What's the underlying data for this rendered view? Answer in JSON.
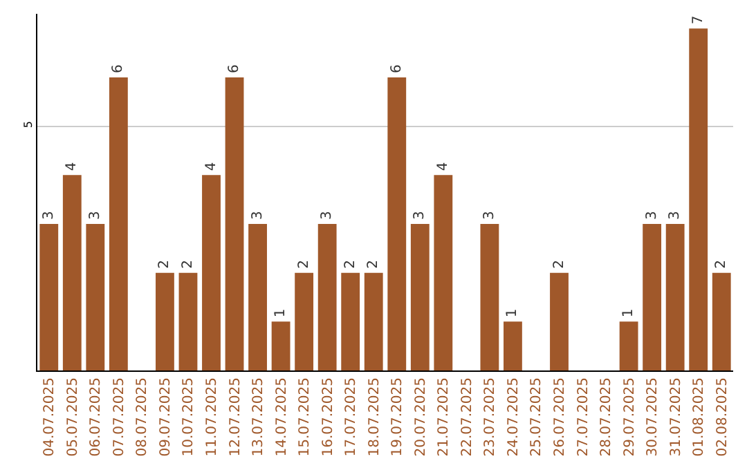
{
  "chart_data": {
    "type": "bar",
    "categories": [
      "04.07.2025",
      "05.07.2025",
      "06.07.2025",
      "07.07.2025",
      "08.07.2025",
      "09.07.2025",
      "10.07.2025",
      "11.07.2025",
      "12.07.2025",
      "13.07.2025",
      "14.07.2025",
      "15.07.2025",
      "16.07.2025",
      "17.07.2025",
      "18.07.2025",
      "19.07.2025",
      "20.07.2025",
      "21.07.2025",
      "22.07.2025",
      "23.07.2025",
      "24.07.2025",
      "25.07.2025",
      "26.07.2025",
      "27.07.2025",
      "28.07.2025",
      "29.07.2025",
      "30.07.2025",
      "31.07.2025",
      "01.08.2025",
      "02.08.2025"
    ],
    "values": [
      3,
      4,
      3,
      6,
      null,
      2,
      2,
      4,
      6,
      3,
      1,
      2,
      3,
      2,
      2,
      6,
      3,
      4,
      null,
      3,
      1,
      null,
      2,
      null,
      null,
      1,
      3,
      3,
      7,
      2
    ],
    "value_labels": [
      "3",
      "4",
      "3",
      "6",
      null,
      "2",
      "2",
      "4",
      "6",
      "3",
      "1",
      "2",
      "3",
      "2",
      "2",
      "6",
      "3",
      "4",
      null,
      "3",
      "1",
      null,
      "2",
      null,
      null,
      "1",
      "3",
      "3",
      "7",
      "2"
    ],
    "color": "#a0582a",
    "ylim": [
      0,
      7.3
    ],
    "yticks": [
      5
    ],
    "grid": "y"
  }
}
